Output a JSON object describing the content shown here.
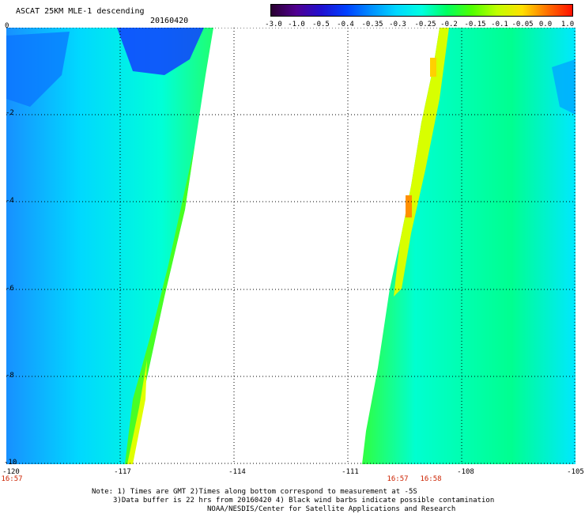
{
  "header": {
    "title": "ASCAT 25KM MLE-1 descending",
    "date": "20160420"
  },
  "colorbar": {
    "labels": [
      "-3.0",
      "-1.0",
      "-0.5",
      "-0.4",
      "-0.35",
      "-0.3",
      "-0.25",
      "-0.2",
      "-0.15",
      "-0.1",
      "-0.05",
      "0.0",
      "1.0"
    ],
    "colors": [
      "#2a0030",
      "#500090",
      "#2010d0",
      "#0040ff",
      "#0090ff",
      "#00d8ff",
      "#00ffe0",
      "#00ff60",
      "#50ff00",
      "#c0ff00",
      "#ffe000",
      "#ff7000",
      "#ff1000"
    ]
  },
  "axes": {
    "lon_ticks": [
      "-120",
      "-117",
      "-114",
      "-111",
      "-108",
      "-105"
    ],
    "lat_ticks": [
      "0",
      "-2",
      "-4",
      "-6",
      "-8",
      "-10"
    ],
    "lon_range": [
      -120,
      -105
    ],
    "lat_range": [
      0,
      -10
    ]
  },
  "swath_times": {
    "left": "16:57",
    "right_a": "16:57",
    "right_b": "16:58"
  },
  "notes": {
    "line1": "Note: 1) Times are GMT 2)Times along bottom correspond to measurement at -5S",
    "line2": "3)Data buffer is 22 hrs from 20160420 4) Black wind barbs indicate possible contamination",
    "line3": "NOAA/NESDIS/Center for Satellite Applications and Research"
  }
}
